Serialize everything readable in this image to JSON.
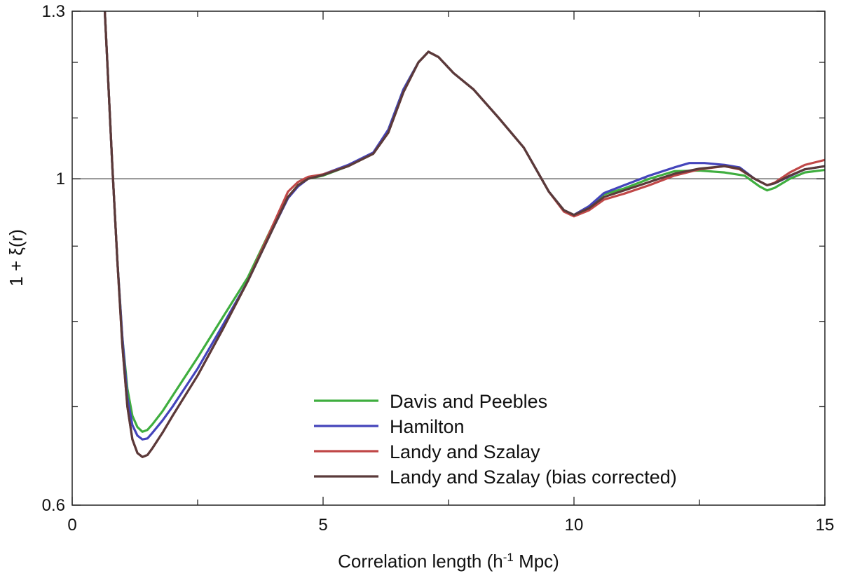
{
  "chart_data": {
    "type": "line",
    "title": "",
    "xlabel": "Correlation length (h",
    "xlabel_sup": "-1",
    "xlabel_suffix": " Mpc)",
    "ylabel": "1 + ξ(r)",
    "xlim": [
      0,
      15
    ],
    "ylim": [
      0.6,
      1.3
    ],
    "yscale": "log",
    "x_ticks": [
      0,
      5,
      10,
      15
    ],
    "x_tick_labels": [
      "0",
      "5",
      "10",
      "15"
    ],
    "y_ticks": [
      0.6,
      1,
      1.3
    ],
    "y_tick_labels": [
      "0.6",
      "1",
      "1.3"
    ],
    "reference_line_y": 1,
    "legend_position": "bottom-center",
    "series": [
      {
        "name": "Davis and Peebles",
        "color": "#3fae3f",
        "points": [
          [
            0.65,
            1.3
          ],
          [
            0.7,
            1.2
          ],
          [
            0.8,
            1.02
          ],
          [
            0.9,
            0.88
          ],
          [
            1.0,
            0.78
          ],
          [
            1.1,
            0.72
          ],
          [
            1.2,
            0.69
          ],
          [
            1.3,
            0.678
          ],
          [
            1.4,
            0.673
          ],
          [
            1.5,
            0.675
          ],
          [
            1.6,
            0.681
          ],
          [
            1.8,
            0.695
          ],
          [
            2.0,
            0.712
          ],
          [
            2.5,
            0.756
          ],
          [
            3.0,
            0.805
          ],
          [
            3.5,
            0.857
          ],
          [
            4.0,
            0.93
          ],
          [
            4.3,
            0.972
          ],
          [
            4.5,
            0.99
          ],
          [
            4.7,
            1.0
          ],
          [
            5.0,
            1.005
          ],
          [
            5.5,
            1.02
          ],
          [
            6.0,
            1.04
          ],
          [
            6.3,
            1.08
          ],
          [
            6.6,
            1.15
          ],
          [
            6.9,
            1.2
          ],
          [
            7.1,
            1.22
          ],
          [
            7.3,
            1.21
          ],
          [
            7.6,
            1.18
          ],
          [
            8.0,
            1.15
          ],
          [
            8.5,
            1.1
          ],
          [
            9.0,
            1.05
          ],
          [
            9.5,
            0.98
          ],
          [
            9.8,
            0.952
          ],
          [
            10.0,
            0.945
          ],
          [
            10.3,
            0.958
          ],
          [
            10.6,
            0.976
          ],
          [
            11.0,
            0.985
          ],
          [
            11.5,
            1.0
          ],
          [
            12.0,
            1.012
          ],
          [
            12.5,
            1.013
          ],
          [
            13.0,
            1.01
          ],
          [
            13.4,
            1.005
          ],
          [
            13.7,
            0.988
          ],
          [
            13.85,
            0.982
          ],
          [
            14.0,
            0.986
          ],
          [
            14.3,
            1.0
          ],
          [
            14.6,
            1.01
          ],
          [
            15.0,
            1.014
          ]
        ]
      },
      {
        "name": "Hamilton",
        "color": "#4444bb",
        "points": [
          [
            0.65,
            1.3
          ],
          [
            0.7,
            1.2
          ],
          [
            0.8,
            1.02
          ],
          [
            0.9,
            0.88
          ],
          [
            1.0,
            0.78
          ],
          [
            1.1,
            0.71
          ],
          [
            1.2,
            0.68
          ],
          [
            1.3,
            0.669
          ],
          [
            1.4,
            0.665
          ],
          [
            1.5,
            0.666
          ],
          [
            1.6,
            0.672
          ],
          [
            1.8,
            0.685
          ],
          [
            2.0,
            0.7
          ],
          [
            2.5,
            0.743
          ],
          [
            3.0,
            0.795
          ],
          [
            3.5,
            0.852
          ],
          [
            4.0,
            0.925
          ],
          [
            4.3,
            0.97
          ],
          [
            4.5,
            0.988
          ],
          [
            4.7,
            1.0
          ],
          [
            5.0,
            1.007
          ],
          [
            5.5,
            1.022
          ],
          [
            6.0,
            1.042
          ],
          [
            6.3,
            1.08
          ],
          [
            6.6,
            1.15
          ],
          [
            6.9,
            1.2
          ],
          [
            7.1,
            1.22
          ],
          [
            7.3,
            1.21
          ],
          [
            7.6,
            1.18
          ],
          [
            8.0,
            1.15
          ],
          [
            8.5,
            1.1
          ],
          [
            9.0,
            1.05
          ],
          [
            9.5,
            0.98
          ],
          [
            9.8,
            0.952
          ],
          [
            10.0,
            0.945
          ],
          [
            10.3,
            0.958
          ],
          [
            10.6,
            0.978
          ],
          [
            11.0,
            0.99
          ],
          [
            11.5,
            1.005
          ],
          [
            12.0,
            1.018
          ],
          [
            12.3,
            1.025
          ],
          [
            12.6,
            1.025
          ],
          [
            13.0,
            1.022
          ],
          [
            13.3,
            1.018
          ],
          [
            13.6,
            1.0
          ],
          [
            13.85,
            0.99
          ],
          [
            14.0,
            0.993
          ],
          [
            14.3,
            1.004
          ],
          [
            14.6,
            1.015
          ],
          [
            15.0,
            1.02
          ]
        ]
      },
      {
        "name": "Landy and Szalay",
        "color": "#c04848",
        "points": [
          [
            0.65,
            1.3
          ],
          [
            0.7,
            1.2
          ],
          [
            0.8,
            1.02
          ],
          [
            0.9,
            0.88
          ],
          [
            1.0,
            0.77
          ],
          [
            1.1,
            0.7
          ],
          [
            1.2,
            0.665
          ],
          [
            1.3,
            0.651
          ],
          [
            1.4,
            0.647
          ],
          [
            1.5,
            0.649
          ],
          [
            1.6,
            0.656
          ],
          [
            1.8,
            0.672
          ],
          [
            2.0,
            0.69
          ],
          [
            2.5,
            0.735
          ],
          [
            3.0,
            0.79
          ],
          [
            3.5,
            0.852
          ],
          [
            4.0,
            0.93
          ],
          [
            4.3,
            0.98
          ],
          [
            4.5,
            0.995
          ],
          [
            4.7,
            1.003
          ],
          [
            5.0,
            1.007
          ],
          [
            5.5,
            1.02
          ],
          [
            6.0,
            1.04
          ],
          [
            6.3,
            1.075
          ],
          [
            6.6,
            1.145
          ],
          [
            6.9,
            1.2
          ],
          [
            7.1,
            1.22
          ],
          [
            7.3,
            1.21
          ],
          [
            7.6,
            1.18
          ],
          [
            8.0,
            1.15
          ],
          [
            8.5,
            1.1
          ],
          [
            9.0,
            1.05
          ],
          [
            9.5,
            0.98
          ],
          [
            9.8,
            0.95
          ],
          [
            10.0,
            0.943
          ],
          [
            10.3,
            0.952
          ],
          [
            10.6,
            0.968
          ],
          [
            11.0,
            0.977
          ],
          [
            11.5,
            0.99
          ],
          [
            12.0,
            1.005
          ],
          [
            12.5,
            1.015
          ],
          [
            13.0,
            1.02
          ],
          [
            13.3,
            1.015
          ],
          [
            13.6,
            1.0
          ],
          [
            13.85,
            0.99
          ],
          [
            14.0,
            0.994
          ],
          [
            14.3,
            1.01
          ],
          [
            14.6,
            1.022
          ],
          [
            15.0,
            1.03
          ]
        ]
      },
      {
        "name": "Landy and Szalay (bias corrected)",
        "color": "#5a3a3a",
        "points": [
          [
            0.65,
            1.3
          ],
          [
            0.7,
            1.2
          ],
          [
            0.8,
            1.02
          ],
          [
            0.9,
            0.88
          ],
          [
            1.0,
            0.77
          ],
          [
            1.1,
            0.7
          ],
          [
            1.2,
            0.665
          ],
          [
            1.3,
            0.651
          ],
          [
            1.4,
            0.647
          ],
          [
            1.5,
            0.649
          ],
          [
            1.6,
            0.656
          ],
          [
            1.8,
            0.672
          ],
          [
            2.0,
            0.69
          ],
          [
            2.5,
            0.735
          ],
          [
            3.0,
            0.79
          ],
          [
            3.5,
            0.852
          ],
          [
            4.0,
            0.925
          ],
          [
            4.3,
            0.972
          ],
          [
            4.5,
            0.99
          ],
          [
            4.7,
            1.0
          ],
          [
            5.0,
            1.006
          ],
          [
            5.5,
            1.02
          ],
          [
            6.0,
            1.04
          ],
          [
            6.3,
            1.075
          ],
          [
            6.6,
            1.145
          ],
          [
            6.9,
            1.2
          ],
          [
            7.1,
            1.22
          ],
          [
            7.3,
            1.21
          ],
          [
            7.6,
            1.18
          ],
          [
            8.0,
            1.15
          ],
          [
            8.5,
            1.1
          ],
          [
            9.0,
            1.05
          ],
          [
            9.5,
            0.98
          ],
          [
            9.8,
            0.952
          ],
          [
            10.0,
            0.945
          ],
          [
            10.3,
            0.955
          ],
          [
            10.6,
            0.972
          ],
          [
            11.0,
            0.982
          ],
          [
            11.5,
            0.995
          ],
          [
            12.0,
            1.008
          ],
          [
            12.5,
            1.016
          ],
          [
            13.0,
            1.02
          ],
          [
            13.3,
            1.016
          ],
          [
            13.6,
            1.0
          ],
          [
            13.85,
            0.99
          ],
          [
            14.0,
            0.993
          ],
          [
            14.3,
            1.005
          ],
          [
            14.6,
            1.015
          ],
          [
            15.0,
            1.02
          ]
        ]
      }
    ]
  }
}
